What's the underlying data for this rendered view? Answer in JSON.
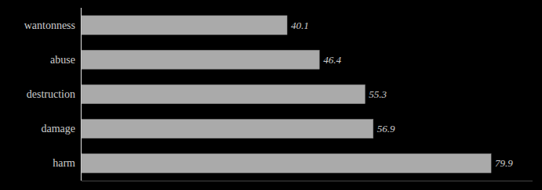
{
  "chart_data": {
    "type": "bar",
    "orientation": "horizontal",
    "categories": [
      "harm",
      "damage",
      "destruction",
      "abuse",
      "wantonness"
    ],
    "values": [
      79.9,
      56.9,
      55.3,
      46.4,
      40.1
    ],
    "color": "#aaaaaa",
    "xlim": [
      0,
      88
    ],
    "data_labels": true,
    "tick_labels": "y"
  }
}
